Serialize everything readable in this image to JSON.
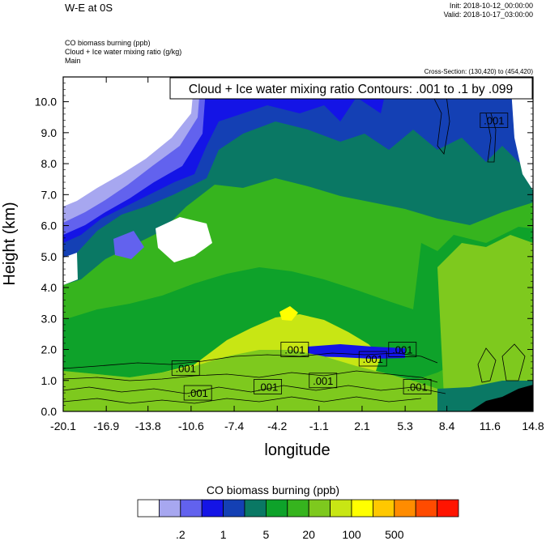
{
  "header": {
    "title": "W-E at 0S",
    "init": "Init: 2018-10-12_00:00:00",
    "valid": "Valid: 2018-10-17_03:00:00",
    "field_lines": [
      "CO biomass burning   (ppb)",
      "Cloud + Ice water mixing ratio   (g/kg)",
      "Main"
    ],
    "cross_section": "Cross-Section: (130,420) to (454,420)"
  },
  "chart_data": {
    "type": "heatmap",
    "title": "Cloud + Ice water mixing ratio Contours: .001 to .1 by .099",
    "xlabel": "longitude",
    "ylabel": "Height (km)",
    "xlim": [
      -20.1,
      14.8
    ],
    "ylim": [
      0.0,
      10.8
    ],
    "x_ticks": [
      "-20.1",
      "-16.9",
      "-13.8",
      "-10.6",
      "-7.4",
      "-4.2",
      "-1.1",
      "2.1",
      "5.3",
      "8.4",
      "11.6",
      "14.8"
    ],
    "y_ticks": [
      "0.0",
      "1.0",
      "2.0",
      "3.0",
      "4.0",
      "5.0",
      "6.0",
      "7.0",
      "8.0",
      "9.0",
      "10.0"
    ],
    "contour_labels": [
      {
        "text": ".001",
        "lon": -11.0,
        "h": 1.4
      },
      {
        "text": ".001",
        "lon": -10.1,
        "h": 0.6
      },
      {
        "text": ".001",
        "lon": -4.9,
        "h": 0.8
      },
      {
        "text": ".001",
        "lon": -2.9,
        "h": 2.0
      },
      {
        "text": ".001",
        "lon": -0.8,
        "h": 1.0
      },
      {
        "text": ".001",
        "lon": 2.9,
        "h": 1.7
      },
      {
        "text": ".001",
        "lon": 5.1,
        "h": 2.0
      },
      {
        "text": ".001",
        "lon": 6.2,
        "h": 0.8
      },
      {
        "text": ".001",
        "lon": 11.9,
        "h": 9.4
      }
    ],
    "colorbar": {
      "title": "CO biomass burning  (ppb)",
      "colors": [
        "#ffffff",
        "#a7a7f0",
        "#6262ee",
        "#1414e6",
        "#1440b4",
        "#0a7864",
        "#0ea22a",
        "#36b41e",
        "#7ec91e",
        "#c8e614",
        "#ffff00",
        "#ffc800",
        "#ff8c00",
        "#ff4b00",
        "#ff1400"
      ],
      "labels": [
        ".2",
        "1",
        "5",
        "20",
        "100",
        "500"
      ]
    }
  }
}
